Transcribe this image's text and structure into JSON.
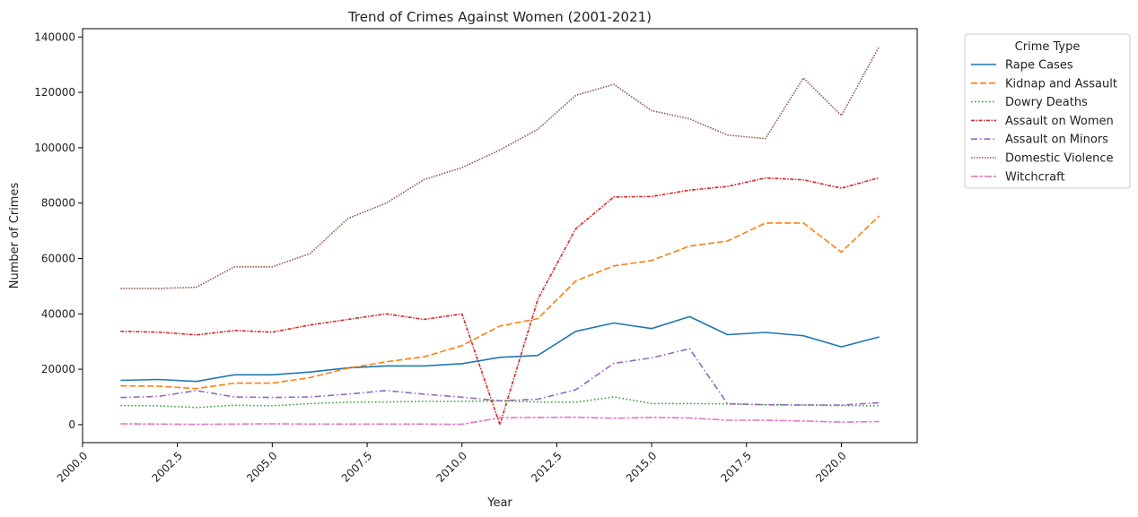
{
  "chart_data": {
    "type": "line",
    "title": "Trend of Crimes Against Women (2001-2021)",
    "xlabel": "Year",
    "ylabel": "Number of Crimes",
    "xlim": [
      2000,
      2022
    ],
    "ylim": [
      -6500,
      143000
    ],
    "x_ticks": [
      2000.0,
      2002.5,
      2005.0,
      2007.5,
      2010.0,
      2012.5,
      2015.0,
      2017.5,
      2020.0
    ],
    "x_tick_labels": [
      "2000.0",
      "2002.5",
      "2005.0",
      "2007.5",
      "2010.0",
      "2012.5",
      "2015.0",
      "2017.5",
      "2020.0"
    ],
    "y_ticks": [
      0,
      20000,
      40000,
      60000,
      80000,
      100000,
      120000,
      140000
    ],
    "y_tick_labels": [
      "0",
      "20000",
      "40000",
      "60000",
      "80000",
      "100000",
      "120000",
      "140000"
    ],
    "legend_title": "Crime Type",
    "legend_position": "outside upper right",
    "grid": false,
    "x": [
      2001,
      2002,
      2003,
      2004,
      2005,
      2006,
      2007,
      2008,
      2009,
      2010,
      2011,
      2012,
      2013,
      2014,
      2015,
      2016,
      2017,
      2018,
      2019,
      2020,
      2021
    ],
    "series": [
      {
        "name": "Rape Cases",
        "color": "#1f77b4",
        "dash": "solid",
        "values": [
          16000,
          16300,
          15600,
          18000,
          18000,
          19000,
          20500,
          21200,
          21200,
          22000,
          24300,
          25000,
          33700,
          36700,
          34700,
          39000,
          32500,
          33300,
          32100,
          28100,
          31700
        ]
      },
      {
        "name": "Kidnap and Assault",
        "color": "#ff7f0e",
        "dash": "dashed",
        "values": [
          14000,
          13900,
          13000,
          15000,
          15000,
          17000,
          20400,
          22700,
          24500,
          28500,
          35600,
          38300,
          51900,
          57300,
          59300,
          64500,
          66300,
          72800,
          72800,
          62300,
          75400
        ]
      },
      {
        "name": "Dowry Deaths",
        "color": "#2ca02c",
        "dash": "dotted",
        "values": [
          6900,
          6800,
          6200,
          7000,
          6800,
          7600,
          8100,
          8200,
          8400,
          8400,
          8600,
          8200,
          8100,
          10000,
          7600,
          7600,
          7500,
          7200,
          7100,
          6900,
          6800
        ]
      },
      {
        "name": "Assault on Women",
        "color": "#d62728",
        "dash": "dashdot-dense",
        "values": [
          33700,
          33400,
          32400,
          34000,
          33400,
          36000,
          38000,
          40000,
          38000,
          40000,
          0,
          45300,
          70700,
          82200,
          82400,
          84700,
          86000,
          89100,
          88400,
          85400,
          89200
        ]
      },
      {
        "name": "Assault on Minors",
        "color": "#9467bd",
        "dash": "dashdot",
        "values": [
          9800,
          10200,
          12300,
          10000,
          9800,
          10000,
          11000,
          12300,
          11000,
          9900,
          8600,
          9200,
          12600,
          22100,
          24100,
          27400,
          7500,
          7200,
          7100,
          7100,
          7900
        ]
      },
      {
        "name": "Domestic Violence",
        "color": "#8c564b",
        "dash": "dotted-dense",
        "values": [
          49200,
          49200,
          49600,
          57000,
          57000,
          61800,
          74500,
          80000,
          88500,
          92800,
          99200,
          106700,
          118900,
          122900,
          113400,
          110400,
          104600,
          103300,
          125200,
          111600,
          136600
        ]
      },
      {
        "name": "Witchcraft",
        "color": "#e377c2",
        "dash": "long-short",
        "values": [
          300,
          200,
          100,
          200,
          300,
          200,
          200,
          200,
          200,
          100,
          2500,
          2600,
          2700,
          2300,
          2600,
          2400,
          1600,
          1600,
          1300,
          900,
          1100
        ]
      }
    ]
  }
}
